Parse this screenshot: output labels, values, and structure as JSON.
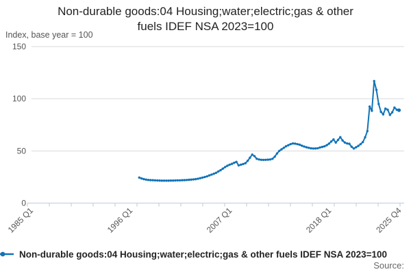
{
  "title_lines": [
    "Non-durable goods:04 Housing;water;electric;gas & other",
    "fuels IDEF NSA 2023=100"
  ],
  "subtitle": "Index, base year = 100",
  "legend": {
    "label": "Non-durable goods:04 Housing;water;electric;gas & other fuels IDEF NSA 2023=100"
  },
  "source_label": "Source:",
  "colors": {
    "line": "#1173b8",
    "grid": "#d9d9d9",
    "axis": "#c7d3e0",
    "tick_text": "#555555",
    "title_text": "#222222"
  },
  "chart_data": {
    "type": "line",
    "title": "Non-durable goods:04 Housing;water;electric;gas & other fuels IDEF NSA 2023=100",
    "ylabel": "Index, base year = 100",
    "ylim": [
      0,
      150
    ],
    "y_ticks": [
      0,
      50,
      100,
      150
    ],
    "x_axis_start": "1985 Q1",
    "x_axis_end": "2025 Q4",
    "x_tick_labels": [
      "1985 Q1",
      "1996 Q1",
      "2007 Q1",
      "2018 Q1",
      "2025 Q4"
    ],
    "x_tick_quarter_offsets": [
      0,
      44,
      88,
      132,
      163
    ],
    "grid": "horizontal",
    "legend_position": "bottom",
    "series": [
      {
        "name": "Non-durable goods:04 Housing;water;electric;gas & other fuels IDEF NSA 2023=100",
        "start": "1997 Q1",
        "end": "2025 Q4",
        "frequency": "quarterly",
        "start_offset_quarters_from_1985Q1": 48,
        "values": [
          24.5,
          23.6,
          23.0,
          22.5,
          22.2,
          22.0,
          21.9,
          21.8,
          21.7,
          21.6,
          21.5,
          21.5,
          21.5,
          21.5,
          21.6,
          21.6,
          21.7,
          21.8,
          21.8,
          21.9,
          22.0,
          22.1,
          22.3,
          22.5,
          22.7,
          23.0,
          23.4,
          23.9,
          24.4,
          25.0,
          25.7,
          26.5,
          27.3,
          28.1,
          29.0,
          30.3,
          31.5,
          33.0,
          34.5,
          35.8,
          36.8,
          37.6,
          38.6,
          39.5,
          36.2,
          36.8,
          37.5,
          38.3,
          40.5,
          43.5,
          46.5,
          45.0,
          42.5,
          41.8,
          41.5,
          41.4,
          41.5,
          41.6,
          41.8,
          42.5,
          44.5,
          47.5,
          50.0,
          51.5,
          53.0,
          54.5,
          55.5,
          56.5,
          57.2,
          57.0,
          56.5,
          56.0,
          55.0,
          54.2,
          53.5,
          53.0,
          52.5,
          52.3,
          52.4,
          52.6,
          53.3,
          53.8,
          54.4,
          55.5,
          57.0,
          59.0,
          61.0,
          58.0,
          60.5,
          63.2,
          60.0,
          58.0,
          57.2,
          56.8,
          54.0,
          52.3,
          53.5,
          54.8,
          56.5,
          58.5,
          63.0,
          69.0,
          92.5,
          88.5,
          117.0,
          108.5,
          95.0,
          87.5,
          85.0,
          90.5,
          89.5,
          84.5,
          87.0,
          91.5,
          89.5,
          89.0
        ]
      }
    ]
  }
}
